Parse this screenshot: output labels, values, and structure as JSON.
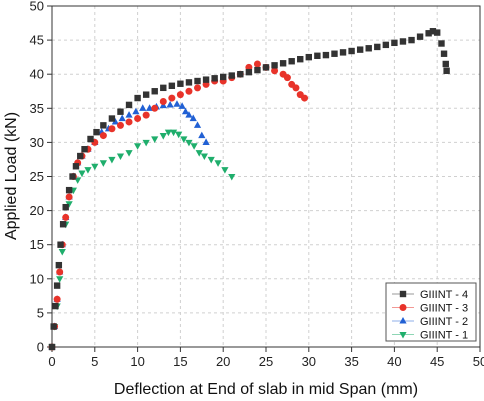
{
  "chart_data": {
    "type": "scatter",
    "title": "",
    "xlabel": "Deflection at End of slab in mid Span (mm)",
    "ylabel": "Applied Load (kN)",
    "xlim": [
      0,
      50
    ],
    "ylim": [
      0,
      50
    ],
    "xticks": [
      0,
      5,
      10,
      15,
      20,
      25,
      30,
      35,
      40,
      45,
      50
    ],
    "yticks": [
      0,
      5,
      10,
      15,
      20,
      25,
      30,
      35,
      40,
      45,
      50
    ],
    "grid": true,
    "legend_position": "bottom-right",
    "series": [
      {
        "name": "GIIINT - 4",
        "color": "#333333",
        "marker": "square",
        "x": [
          0,
          0.2,
          0.4,
          0.6,
          0.8,
          1.0,
          1.3,
          1.6,
          2.0,
          2.4,
          2.8,
          3.3,
          3.8,
          4.5,
          5.2,
          6.0,
          7.0,
          8.0,
          9.0,
          10.0,
          11.0,
          12.0,
          13.0,
          14.0,
          15.0,
          16.0,
          17.0,
          18.0,
          19.0,
          20.0,
          21.0,
          22.0,
          23.0,
          24.0,
          25.0,
          26.0,
          27.0,
          28.0,
          29.0,
          30.0,
          31.0,
          32.0,
          33.0,
          34.0,
          35.0,
          36.0,
          37.0,
          38.0,
          39.0,
          40.0,
          41.0,
          42.0,
          43.0,
          44.0,
          44.5,
          45.0,
          45.5,
          45.8,
          46.0,
          46.1
        ],
        "y": [
          0,
          3,
          6,
          9,
          12,
          15,
          18,
          20.5,
          23,
          25,
          26.5,
          28,
          29,
          30.5,
          31.5,
          32.5,
          33.5,
          34.5,
          35.5,
          36.5,
          37,
          37.5,
          38,
          38.3,
          38.6,
          38.8,
          39,
          39.2,
          39.4,
          39.6,
          39.8,
          40,
          40.3,
          40.6,
          41,
          41.3,
          41.6,
          41.9,
          42.2,
          42.5,
          42.7,
          42.8,
          43,
          43.2,
          43.4,
          43.6,
          43.8,
          44,
          44.3,
          44.6,
          44.8,
          45,
          45.5,
          46,
          46.3,
          46.1,
          44.5,
          43,
          41.5,
          40.5
        ]
      },
      {
        "name": "GIIINT - 3",
        "color": "#e8332a",
        "marker": "circle",
        "x": [
          0,
          0.3,
          0.6,
          0.9,
          1.2,
          1.6,
          2.0,
          2.5,
          3.0,
          3.5,
          4.2,
          5.0,
          6.0,
          7.0,
          8.0,
          9.0,
          10.0,
          11.0,
          12.0,
          13.0,
          14.0,
          15.0,
          16.0,
          17.0,
          18.0,
          19.0,
          20.0,
          21.0,
          22.0,
          23.0,
          24.0,
          25.0,
          26.0,
          27.0,
          27.5,
          28.0,
          28.5,
          29.0,
          29.5
        ],
        "y": [
          0,
          3,
          7,
          11,
          15,
          19,
          22,
          25,
          27,
          28,
          29,
          30,
          31,
          32,
          32.5,
          33,
          33.5,
          34,
          35,
          36,
          36.5,
          37,
          37.5,
          38,
          38.5,
          39,
          39,
          39.5,
          40,
          41,
          41.5,
          41,
          40.5,
          40,
          39.5,
          38.5,
          38,
          37,
          36.5
        ]
      },
      {
        "name": "GIIINT - 2",
        "color": "#2160d4",
        "marker": "triangle-up",
        "x": [
          0,
          0.3,
          0.6,
          0.9,
          1.2,
          1.6,
          2.0,
          2.5,
          3.0,
          3.5,
          4.2,
          5.0,
          5.8,
          6.6,
          7.4,
          8.2,
          9.0,
          9.8,
          10.6,
          11.4,
          12.2,
          13.0,
          13.8,
          14.6,
          15.2,
          15.6,
          16.0,
          16.5,
          17.0,
          17.5,
          18.0
        ],
        "y": [
          0,
          3,
          7,
          11,
          15,
          19,
          22,
          25,
          27,
          28,
          29,
          30,
          31.5,
          32,
          33,
          33.5,
          34,
          34.5,
          35,
          35,
          35.2,
          35.4,
          35.5,
          35.6,
          35.3,
          34.5,
          34,
          33.5,
          32.5,
          31,
          30
        ]
      },
      {
        "name": "GIIINT - 1",
        "color": "#1fae6c",
        "marker": "triangle-down",
        "x": [
          0,
          0.3,
          0.6,
          0.9,
          1.2,
          1.6,
          2.0,
          2.5,
          3.0,
          3.5,
          4.2,
          5.0,
          6.0,
          7.0,
          8.0,
          9.0,
          10.0,
          11.0,
          12.0,
          13.0,
          13.6,
          14.2,
          14.8,
          15.4,
          16.0,
          16.6,
          17.2,
          17.8,
          18.6,
          19.4,
          20.2,
          21.0
        ],
        "y": [
          0,
          3,
          6,
          10,
          14,
          18,
          21,
          23,
          24.5,
          25.5,
          26,
          26.5,
          27,
          27.5,
          28,
          28.5,
          29.5,
          30,
          30.5,
          31,
          31.5,
          31.5,
          31.2,
          30.5,
          30,
          29.5,
          28.5,
          28,
          27.5,
          27,
          26,
          25
        ]
      }
    ]
  }
}
